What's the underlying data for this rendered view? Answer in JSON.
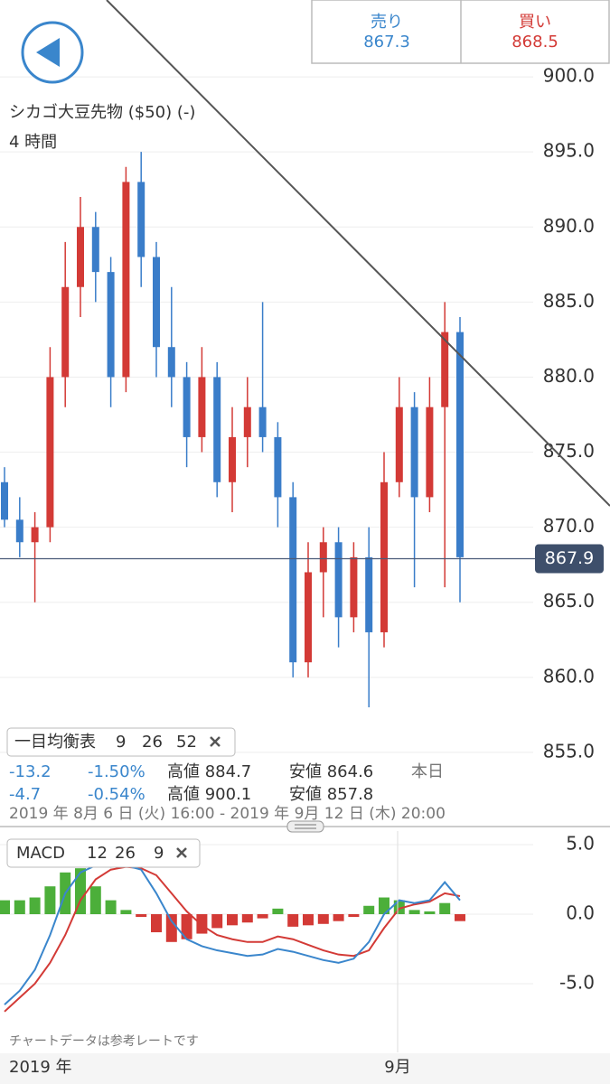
{
  "header": {
    "sell_label": "売り",
    "sell_price": "867.3",
    "buy_label": "買い",
    "buy_price": "868.5"
  },
  "instrument": {
    "name": "シカゴ大豆先物 ($50) (-)",
    "timeframe": "4 時間"
  },
  "indicator": {
    "name": "一目均衡表",
    "params": [
      "9",
      "26",
      "52"
    ]
  },
  "stats": {
    "rows": [
      [
        "-13.2",
        "-1.50%",
        "高値 884.7",
        "安値 864.6",
        "本日"
      ],
      [
        "-4.7",
        "-0.54%",
        "高値 900.1",
        "安値 857.8"
      ]
    ],
    "range": "2019 年 8月 6 日 (火) 16:00 - 2019 年 9月 12 日 (木) 20:00"
  },
  "macd_label": {
    "name": "MACD",
    "params": [
      "12",
      "26",
      "9"
    ]
  },
  "note": "チャートデータは参考レートです",
  "x_labels": {
    "year": "2019 年",
    "month": "9月"
  },
  "chart_data": [
    {
      "type": "candlestick",
      "open": [
        873,
        870.5,
        869,
        870,
        880,
        886,
        890,
        887,
        880,
        893,
        888,
        882,
        880,
        876,
        880,
        873,
        876,
        878,
        876,
        872,
        861,
        867,
        869,
        864,
        868,
        863,
        873,
        878,
        872,
        878,
        883
      ],
      "high": [
        874,
        872,
        871,
        882,
        889,
        892,
        891,
        888,
        894,
        895,
        889,
        886,
        881,
        882,
        881,
        878,
        880,
        885,
        877,
        873,
        869,
        870,
        870,
        869,
        870,
        875,
        880,
        879,
        880,
        885,
        884
      ],
      "low": [
        870,
        868,
        865,
        869,
        878,
        884,
        885,
        878,
        879,
        886,
        880,
        878,
        874,
        875,
        872,
        871,
        874,
        875,
        870,
        860,
        860,
        864,
        862,
        863,
        858,
        862,
        872,
        866,
        871,
        866,
        865
      ],
      "close": [
        870.5,
        869,
        870,
        880,
        886,
        890,
        887,
        880,
        893,
        888,
        882,
        880,
        876,
        880,
        873,
        876,
        878,
        876,
        872,
        861,
        867,
        869,
        864,
        868,
        863,
        873,
        878,
        872,
        878,
        883,
        868
      ],
      "up_color": "#d33a36",
      "down_color": "#3a7dc9",
      "last_price": 867.9,
      "ylim": [
        850,
        905
      ],
      "yticks": [
        {
          "value": 900,
          "label": "900.0"
        },
        {
          "value": 895,
          "label": "895.0"
        },
        {
          "value": 890,
          "label": "890.0"
        },
        {
          "value": 885,
          "label": "885.0"
        },
        {
          "value": 880,
          "label": "880.0"
        },
        {
          "value": 875,
          "label": "875.0"
        },
        {
          "value": 870,
          "label": "870.0"
        },
        {
          "value": 865,
          "label": "865.0"
        },
        {
          "value": 860,
          "label": "860.0"
        },
        {
          "value": 855,
          "label": "855.0"
        }
      ]
    },
    {
      "type": "macd",
      "macd": [
        -6.5,
        -5.5,
        -4,
        -1.5,
        1.5,
        3,
        3.5,
        3.4,
        3.5,
        3.2,
        1.5,
        -0.5,
        -1.8,
        -2.3,
        -2.6,
        -2.8,
        -3,
        -2.9,
        -2.5,
        -2.7,
        -3,
        -3.3,
        -3.5,
        -3.2,
        -2,
        0,
        1,
        0.8,
        1,
        2.3,
        1
      ],
      "signal": [
        -7,
        -6,
        -5,
        -3.5,
        -1.5,
        1,
        2.5,
        3.2,
        3.4,
        3.3,
        2.8,
        1.5,
        0.2,
        -0.8,
        -1.5,
        -1.8,
        -2,
        -2,
        -1.6,
        -1.8,
        -2.2,
        -2.6,
        -2.9,
        -3,
        -2.6,
        -1,
        0.4,
        0.7,
        0.9,
        1.5,
        1.3
      ],
      "histogram": [
        1,
        1,
        1.2,
        2,
        3,
        3.3,
        2,
        1,
        0.3,
        -0.2,
        -1.3,
        -2,
        -1.8,
        -1.4,
        -1,
        -0.8,
        -0.6,
        -0.3,
        0.4,
        -0.9,
        -0.8,
        -0.7,
        -0.5,
        -0.2,
        0.6,
        1.2,
        1,
        0.3,
        0.2,
        0.8,
        -0.5
      ],
      "macd_color": "#3a86cc",
      "signal_color": "#d33a36",
      "positive_color": "#4caf3a",
      "negative_color": "#d33a36",
      "ylim": [
        -10,
        6
      ],
      "yticks": [
        {
          "value": 5,
          "label": "5.0"
        },
        {
          "value": 0,
          "label": "0.0"
        },
        {
          "value": -5,
          "label": "-5.0"
        }
      ]
    }
  ]
}
